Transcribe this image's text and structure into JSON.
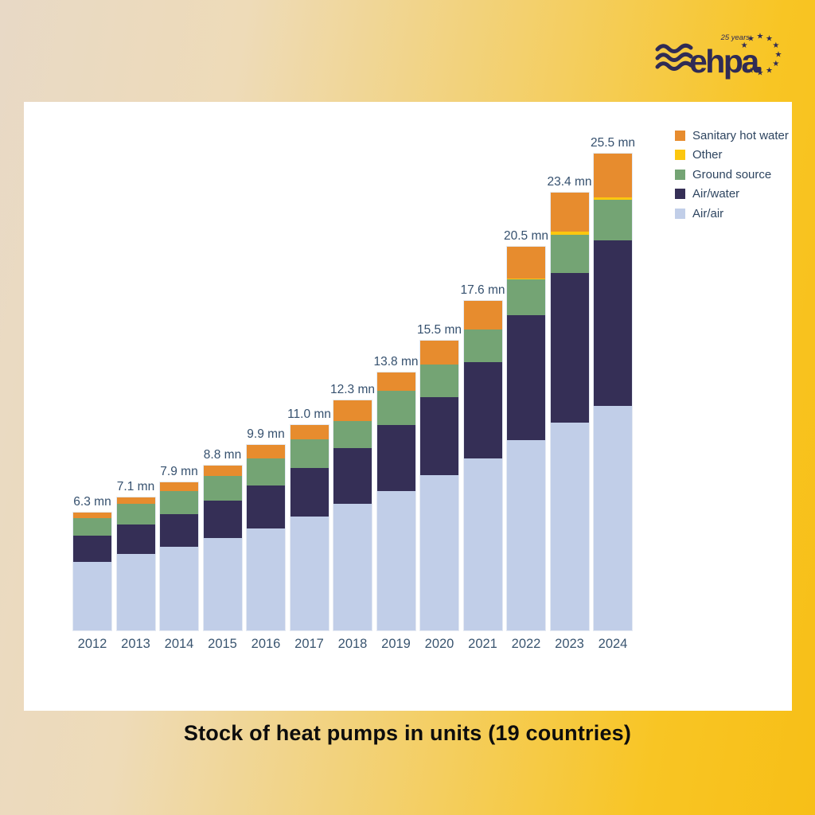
{
  "title": "Stock of heat pumps in units (19 countries)",
  "logo": {
    "brand": "ehpa",
    "anniversary": "25 years",
    "color": "#2f2b55"
  },
  "colors": {
    "panel": "#ffffff",
    "background_left": "#e8d9c6",
    "background_right": "#f7bf17",
    "label_text": "#35506e",
    "title_text": "#0d0d0d"
  },
  "chart_data": {
    "type": "bar",
    "stacked": true,
    "title": "Stock of heat pumps in units (19 countries)",
    "unit": "mn units",
    "grid": false,
    "legend_position": "top-right",
    "categories": [
      "2012",
      "2013",
      "2014",
      "2015",
      "2016",
      "2017",
      "2018",
      "2019",
      "2020",
      "2021",
      "2022",
      "2023",
      "2024"
    ],
    "totals": [
      6.3,
      7.1,
      7.9,
      8.8,
      9.9,
      11.0,
      12.3,
      13.8,
      15.5,
      17.6,
      20.5,
      23.4,
      25.5
    ],
    "total_labels": [
      "6.3 mn",
      "7.1 mn",
      "7.9 mn",
      "8.8 mn",
      "9.9 mn",
      "11.0 mn",
      "12.3 mn",
      "13.8 mn",
      "15.5 mn",
      "17.6 mn",
      "20.5 mn",
      "23.4 mn",
      "25.5 mn"
    ],
    "series": [
      {
        "name": "Air/air",
        "color": "#c1cee8",
        "values": [
          3.65,
          4.1,
          4.45,
          4.95,
          5.45,
          6.1,
          6.75,
          7.45,
          8.3,
          9.2,
          10.15,
          11.1,
          12.0
        ]
      },
      {
        "name": "Air/water",
        "color": "#352f56",
        "values": [
          1.4,
          1.55,
          1.75,
          2.0,
          2.3,
          2.6,
          3.0,
          3.55,
          4.15,
          5.15,
          6.7,
          8.0,
          8.85
        ]
      },
      {
        "name": "Ground source",
        "color": "#74a474",
        "values": [
          0.95,
          1.1,
          1.25,
          1.3,
          1.45,
          1.5,
          1.45,
          1.8,
          1.75,
          1.75,
          1.9,
          2.05,
          2.15
        ]
      },
      {
        "name": "Other",
        "color": "#fcc70f",
        "values": [
          0.0,
          0.0,
          0.0,
          0.0,
          0.0,
          0.0,
          0.0,
          0.0,
          0.0,
          0.0,
          0.05,
          0.15,
          0.15
        ]
      },
      {
        "name": "Sanitary hot water",
        "color": "#e78c2e",
        "values": [
          0.3,
          0.35,
          0.45,
          0.55,
          0.7,
          0.8,
          1.1,
          1.0,
          1.3,
          1.5,
          1.7,
          2.1,
          2.35
        ]
      }
    ]
  }
}
